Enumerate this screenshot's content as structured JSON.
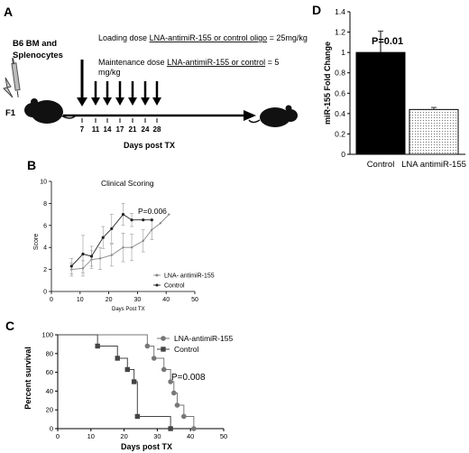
{
  "panel_labels": [
    "A",
    "B",
    "C",
    "D"
  ],
  "panel_a": {
    "donor_label_line1": "B6 BM and",
    "donor_label_line2": "Splenocytes",
    "recipient_label": "F1",
    "loading_prefix": "Loading dose ",
    "loading_underlined": "LNA-antimiR-155 or control oligo",
    "loading_suffix": " = 25mg/kg",
    "maint_prefix": "Maintenance dose ",
    "maint_underlined": "LNA-antimiR-155 or control",
    "maint_suffix": " = 5",
    "maint_line2": "mg/kg",
    "days": [
      7,
      11,
      14,
      17,
      21,
      24,
      28
    ],
    "xlabel": "Days post TX",
    "colors": {
      "mouse": "#111111",
      "syringe": "#888888"
    }
  },
  "chart_data": [
    {
      "panel": "B",
      "type": "line",
      "title": "Clinical Scoring",
      "annotation": "P=0.006",
      "xlabel": "Days Post TX",
      "ylabel": "Score",
      "xlim": [
        0,
        50
      ],
      "ylim": [
        0,
        10
      ],
      "xticks": [
        0,
        10,
        20,
        30,
        40,
        50
      ],
      "yticks": [
        0,
        2,
        4,
        6,
        8,
        10
      ],
      "legend_position": "bottom-right",
      "series": [
        {
          "name": "LNA- antimiR-155",
          "color": "#888888",
          "x": [
            7,
            11,
            14,
            17,
            21,
            25,
            28,
            32,
            35,
            38,
            41
          ],
          "y": [
            2.0,
            2.1,
            2.9,
            3.0,
            3.3,
            4.0,
            4.0,
            4.6,
            5.6,
            6.2,
            7.0
          ],
          "err": [
            0.6,
            0.7,
            0.8,
            1.0,
            1.0,
            1.3,
            1.2,
            1.0,
            0.9,
            0,
            0
          ]
        },
        {
          "name": "Control",
          "color": "#222222",
          "x": [
            7,
            11,
            14,
            18,
            21,
            25,
            28,
            32,
            35
          ],
          "y": [
            2.3,
            3.4,
            3.2,
            4.9,
            5.7,
            7.0,
            6.5,
            6.5,
            6.5
          ],
          "err": [
            0.7,
            1.7,
            0.9,
            1.0,
            1.3,
            1.0,
            0.6,
            0,
            0
          ]
        }
      ]
    },
    {
      "panel": "C",
      "type": "line",
      "title": "",
      "annotation": "P=0.008",
      "xlabel": "Days post TX",
      "ylabel": "Percent survival",
      "xlim": [
        0,
        50
      ],
      "ylim": [
        0,
        100
      ],
      "xticks": [
        0,
        10,
        20,
        30,
        40,
        50
      ],
      "yticks": [
        0,
        20,
        40,
        60,
        80,
        100
      ],
      "legend_position": "top-right",
      "series": [
        {
          "name": "LNA-antimiR-155",
          "color": "#777777",
          "marker": "circle",
          "step_x": [
            0,
            27,
            27,
            29,
            29,
            32,
            32,
            34,
            34,
            35,
            35,
            36,
            36,
            38,
            38,
            41,
            41
          ],
          "step_y": [
            100,
            100,
            88,
            88,
            75,
            75,
            63,
            63,
            50,
            50,
            38,
            38,
            25,
            25,
            13,
            13,
            0
          ],
          "marker_x": [
            27,
            29,
            32,
            34,
            35,
            36,
            38,
            41
          ],
          "marker_y": [
            88,
            75,
            63,
            50,
            38,
            25,
            13,
            0
          ]
        },
        {
          "name": "Control",
          "color": "#444444",
          "marker": "square",
          "step_x": [
            0,
            12,
            12,
            18,
            18,
            21,
            21,
            23,
            23,
            24,
            24,
            34,
            34
          ],
          "step_y": [
            100,
            100,
            88,
            88,
            75,
            75,
            63,
            63,
            50,
            50,
            13,
            13,
            0
          ],
          "marker_x": [
            12,
            18,
            21,
            23,
            24,
            34
          ],
          "marker_y": [
            88,
            75,
            63,
            50,
            13,
            0
          ]
        }
      ]
    },
    {
      "panel": "D",
      "type": "bar",
      "title": "",
      "annotation": "P=0.01",
      "ylabel": "miR-155 Fold Change",
      "categories": [
        "Control",
        "LNA antimiR-155"
      ],
      "values": [
        1.0,
        0.44
      ],
      "err": [
        0.21,
        0.02
      ],
      "colors": [
        "#000000",
        "#f0f0f0"
      ],
      "ylim": [
        0,
        1.4
      ],
      "yticks": [
        "0",
        "0.2",
        "0.4",
        "0.6",
        "0.8",
        "1",
        "1.2",
        "1.4"
      ]
    }
  ]
}
